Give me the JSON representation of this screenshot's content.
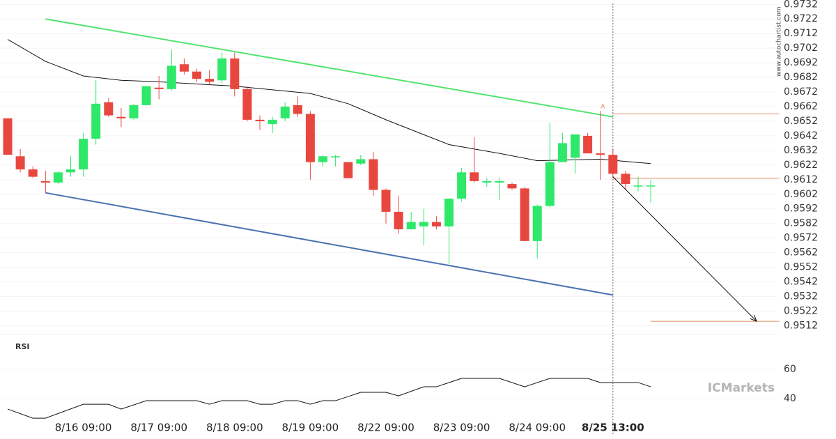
{
  "chart_data": {
    "type": "candlestick",
    "watermark": "www.autochartist.com",
    "brand": "ICMarkets",
    "categories": [
      null,
      null,
      null,
      null,
      null,
      null,
      "8/16 09:00",
      null,
      null,
      null,
      null,
      null,
      "8/17 09:00",
      null,
      null,
      null,
      null,
      null,
      "8/18 09:00",
      null,
      null,
      null,
      null,
      null,
      "8/19 09:00",
      null,
      null,
      null,
      null,
      null,
      "8/22 09:00",
      null,
      null,
      null,
      null,
      null,
      "8/23 09:00",
      null,
      null,
      null,
      null,
      null,
      "8/24 09:00",
      null,
      null,
      null,
      null,
      null,
      "8/25 13:00",
      null,
      null,
      null
    ],
    "highlight_category": 48,
    "open": [
      0.9654,
      0.9628,
      0.9619,
      0.9611,
      0.961,
      0.9617,
      0.9619,
      0.964,
      0.9665,
      0.9655,
      0.9654,
      0.9663,
      0.9675,
      0.9674,
      0.9691,
      0.9686,
      0.9681,
      0.968,
      0.9695,
      0.9674,
      0.9653,
      0.965,
      0.9654,
      0.9663,
      0.9657,
      0.9624,
      0.9628,
      0.9624,
      0.9623,
      0.9626,
      0.9605,
      0.959,
      0.9578,
      0.958,
      0.9583,
      0.958,
      0.9599,
      0.9617,
      0.961,
      0.961,
      0.9609,
      0.9606,
      0.957,
      0.9594,
      0.9624,
      0.9627,
      0.9642,
      0.963,
      0.9629,
      0.9616,
      0.9608,
      0.9608
    ],
    "high": [
      0.9654,
      0.9633,
      0.9621,
      0.9618,
      0.9618,
      0.9628,
      0.9644,
      0.968,
      0.9668,
      0.9661,
      0.9664,
      0.9676,
      0.9683,
      0.9701,
      0.9695,
      0.9688,
      0.9687,
      0.9699,
      0.9699,
      0.9676,
      0.9656,
      0.9655,
      0.9665,
      0.9669,
      0.9659,
      0.9629,
      0.9629,
      0.9624,
      0.9629,
      0.9631,
      0.9606,
      0.9601,
      0.959,
      0.9592,
      0.9587,
      0.9599,
      0.962,
      0.9641,
      0.9613,
      0.9613,
      0.961,
      0.9607,
      0.9595,
      0.9651,
      0.9644,
      0.9643,
      0.9644,
      0.9659,
      0.9633,
      0.9618,
      0.9614,
      0.9612
    ],
    "low": [
      0.9629,
      0.9617,
      0.9613,
      0.9603,
      0.9609,
      0.9614,
      0.9614,
      0.9636,
      0.9655,
      0.9648,
      0.9653,
      0.9663,
      0.9667,
      0.9673,
      0.9684,
      0.9679,
      0.9677,
      0.9678,
      0.9669,
      0.9652,
      0.9646,
      0.9644,
      0.9652,
      0.9655,
      0.9612,
      0.9621,
      0.9621,
      0.9613,
      0.9622,
      0.9601,
      0.9582,
      0.9575,
      0.9578,
      0.9567,
      0.9578,
      0.9554,
      0.9597,
      0.961,
      0.9607,
      0.9598,
      0.9605,
      0.957,
      0.9558,
      0.9593,
      0.9624,
      0.9616,
      0.963,
      0.9612,
      0.9613,
      0.9605,
      0.9604,
      0.9596
    ],
    "close": [
      0.9629,
      0.9619,
      0.9614,
      0.961,
      0.9617,
      0.9619,
      0.964,
      0.9664,
      0.9656,
      0.9654,
      0.9663,
      0.9676,
      0.9674,
      0.969,
      0.9686,
      0.9681,
      0.9679,
      0.9695,
      0.9674,
      0.9653,
      0.9652,
      0.9653,
      0.9662,
      0.9657,
      0.9624,
      0.9628,
      0.9628,
      0.9613,
      0.9626,
      0.9605,
      0.959,
      0.9578,
      0.9583,
      0.9583,
      0.958,
      0.9599,
      0.9617,
      0.9611,
      0.9611,
      0.9611,
      0.9606,
      0.957,
      0.9594,
      0.9624,
      0.9637,
      0.9643,
      0.963,
      0.9629,
      0.9616,
      0.9609,
      0.9608,
      0.9608
    ],
    "up_color": "#2ee86a",
    "down_color": "#e8473f",
    "ylim": [
      0.9506,
      0.9735
    ],
    "yticks": [
      0.9512,
      0.9522,
      0.9532,
      0.9542,
      0.9552,
      0.9562,
      0.9572,
      0.9582,
      0.9592,
      0.9602,
      0.9612,
      0.9622,
      0.9632,
      0.9642,
      0.9652,
      0.9662,
      0.9672,
      0.9682,
      0.9692,
      0.9702,
      0.9712,
      0.9722,
      0.9732
    ],
    "grid": true,
    "moving_average": {
      "x": [
        0,
        3,
        6,
        9,
        12,
        18,
        24,
        27,
        30,
        35,
        39,
        42,
        47,
        51
      ],
      "values": [
        0.9708,
        0.9693,
        0.9683,
        0.968,
        0.9679,
        0.9676,
        0.9671,
        0.9664,
        0.9653,
        0.9636,
        0.963,
        0.9625,
        0.9626,
        0.9623
      ],
      "color": "#111111"
    },
    "trendlines": [
      {
        "x": [
          3,
          48
        ],
        "values": [
          0.9722,
          0.9655
        ],
        "color": "#52e36f"
      },
      {
        "x": [
          3,
          48
        ],
        "values": [
          0.9603,
          0.9533
        ],
        "color": "#4a72b0"
      }
    ],
    "levels": [
      {
        "x": [
          48,
          61.2
        ],
        "value": 0.9657,
        "color": "#e08a5c"
      },
      {
        "x": [
          48,
          61.2
        ],
        "value": 0.9613,
        "color": "#e08a5c"
      },
      {
        "x": [
          51,
          61.2
        ],
        "value": 0.9515,
        "color": "#e08a5c"
      }
    ],
    "forecast": {
      "x": [
        48,
        59.4
      ],
      "values": [
        0.9614,
        0.9515
      ],
      "color": "#111111"
    },
    "pattern_label": {
      "text": "A",
      "x": 47.2,
      "value": 0.9662
    },
    "signal_index": 48,
    "rsi": {
      "label": "RSI",
      "x": [
        0,
        2,
        3,
        6,
        8,
        9,
        11,
        15,
        16,
        17,
        19,
        20,
        21,
        22,
        23,
        24,
        25,
        26,
        28,
        30,
        31,
        33,
        34,
        36,
        39,
        41,
        43,
        46,
        47,
        50,
        51
      ],
      "values": [
        32.9,
        26.7,
        26.7,
        36.2,
        36.2,
        32.9,
        38.6,
        38.6,
        36.2,
        38.6,
        38.6,
        36.2,
        36.2,
        38.6,
        38.6,
        36.2,
        38.6,
        38.6,
        44.3,
        44.3,
        41.9,
        48.1,
        48.1,
        53.8,
        53.8,
        48.1,
        53.8,
        53.8,
        51.0,
        51.0,
        48.1
      ],
      "ylim": [
        22,
        79
      ],
      "yticks": [
        40,
        60
      ],
      "color": "#111111"
    }
  }
}
